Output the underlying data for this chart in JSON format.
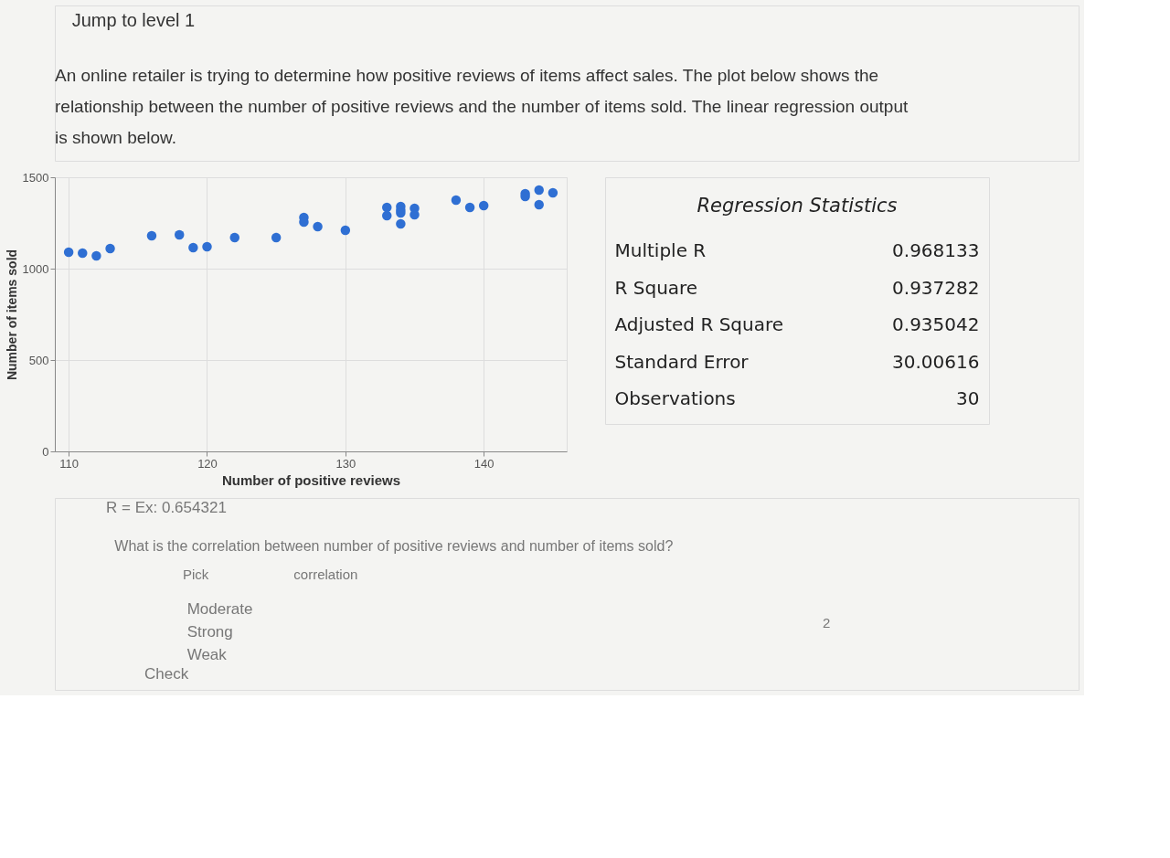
{
  "chart_data": [
    {
      "type": "scatter",
      "title": "An online retailer is trying to determine how positive reviews of items affect sales. The plot below shows the relationship between the number of positive reviews and the number of items sold. The linear regression output is shown below.",
      "xlabel": "Number of positive reviews",
      "ylabel": "Number of items sold",
      "x": [
        110,
        111,
        112,
        113,
        116,
        118,
        119,
        120,
        122,
        125,
        127,
        127,
        128,
        130,
        133,
        133,
        134,
        134,
        134,
        134,
        135,
        135,
        138,
        139,
        140,
        143,
        143,
        144,
        144,
        145
      ],
      "series": [
        {
          "color": "#2f6fd3",
          "values": [
            1090,
            1085,
            1070,
            1110,
            1180,
            1185,
            1115,
            1120,
            1170,
            1170,
            1280,
            1255,
            1230,
            1210,
            1335,
            1290,
            1340,
            1320,
            1305,
            1245,
            1330,
            1295,
            1375,
            1335,
            1345,
            1410,
            1395,
            1430,
            1350,
            1415
          ]
        }
      ],
      "xlim": [
        109,
        146
      ],
      "ylim": [
        0,
        1500
      ],
      "xticks": [
        110,
        120,
        130,
        140
      ],
      "yticks": [
        0,
        500,
        1000,
        1500
      ],
      "grid": true,
      "marker": "circle",
      "annotations": [
        "Jump to level 1",
        "R = Ex: 0.654321",
        "What is the correlation between number of positive reviews and number of items sold?",
        "Pick",
        "correlation",
        "Moderate",
        "Strong",
        "Weak",
        "Check",
        "2"
      ]
    },
    {
      "type": "other",
      "title": "Regression Statistics",
      "annotations": [
        "Multiple R",
        "0.968133",
        "R Square",
        "0.937282",
        "Adjusted R Square",
        "0.935042",
        "Standard Error",
        "30.00616",
        "Observations",
        "30"
      ]
    }
  ]
}
